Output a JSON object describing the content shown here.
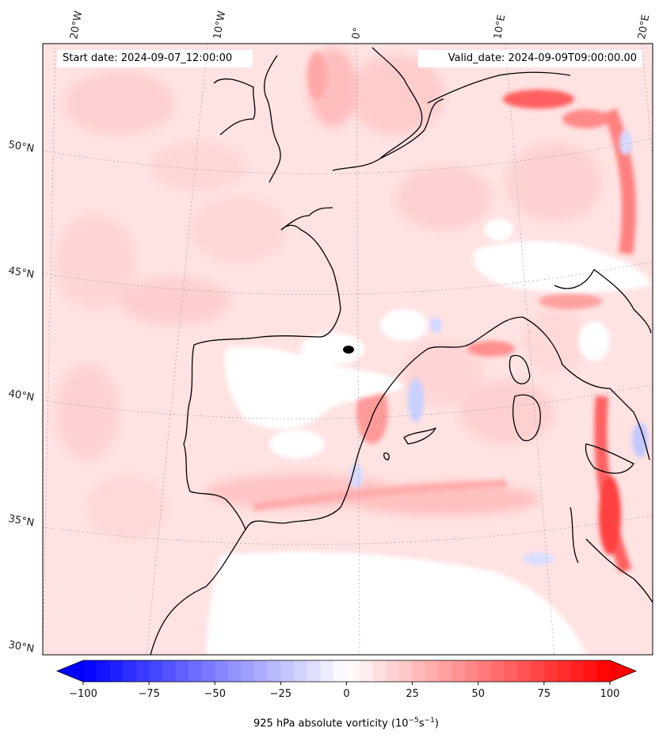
{
  "map": {
    "start_date": "Start date: 2024-09-07_12:00:00",
    "valid_date": "Valid_date: 2024-09-09T09:00:00.00",
    "lon_labels": [
      "20°W",
      "10°W",
      "0°",
      "10°E",
      "20°E"
    ],
    "lat_labels": [
      "50°N",
      "45°N",
      "40°N",
      "35°N",
      "30°N"
    ],
    "marker": "black dot near 42°N, 1°E"
  },
  "colorbar": {
    "label_prefix": "925 hPa absolute vorticity (10",
    "label_exp1": "−5",
    "label_mid": "s",
    "label_exp2": "−1",
    "label_suffix": ")",
    "ticks": [
      "−100",
      "−75",
      "−50",
      "−25",
      "0",
      "25",
      "50",
      "75",
      "100"
    ],
    "min": -100,
    "max": 100,
    "low_color": "#0000ff",
    "mid_color": "#ffffff",
    "high_color": "#ff0000",
    "extend": "both"
  }
}
